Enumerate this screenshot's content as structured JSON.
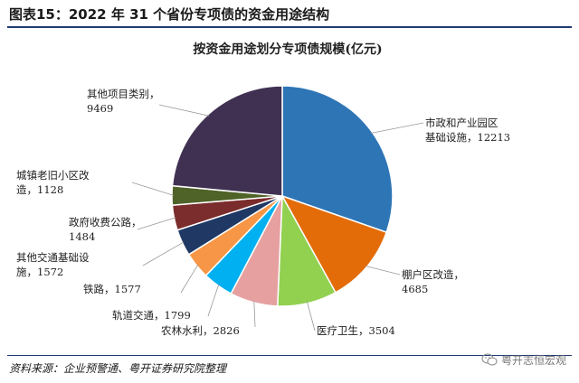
{
  "header": {
    "title": "图表15：2022 年 31 个省份专项债的资金用途结构"
  },
  "source": {
    "text": "资料来源：企业预警通、粤开证券研究院整理"
  },
  "watermark": {
    "text": "粤开志恒宏观",
    "icon": "wechat-icon"
  },
  "chart_data": {
    "type": "pie",
    "title": "按资金用途划分专项债规模(亿元)",
    "legend": "none",
    "slices": [
      {
        "label": "市政和产业园区基础设施",
        "lines": [
          "市政和产业园区",
          "基础设施，12213"
        ],
        "value": 12213,
        "color": "#2e75b6"
      },
      {
        "label": "棚户区改造",
        "lines": [
          "棚户区改造，",
          "4685"
        ],
        "value": 4685,
        "color": "#e36c09"
      },
      {
        "label": "医疗卫生",
        "lines": [
          "医疗卫生，3504"
        ],
        "value": 3504,
        "color": "#92d050"
      },
      {
        "label": "农林水利",
        "lines": [
          "农林水利，2826"
        ],
        "value": 2826,
        "color": "#e6a0a0"
      },
      {
        "label": "轨道交通",
        "lines": [
          "轨道交通，1799"
        ],
        "value": 1799,
        "color": "#00b0f0"
      },
      {
        "label": "铁路",
        "lines": [
          "铁路，1577"
        ],
        "value": 1577,
        "color": "#f79646"
      },
      {
        "label": "其他交通基础设施",
        "lines": [
          "其他交通基础设",
          "施，1572"
        ],
        "value": 1572,
        "color": "#1f3864"
      },
      {
        "label": "政府收费公路",
        "lines": [
          "政府收费公路，",
          "1484"
        ],
        "value": 1484,
        "color": "#7b2c2c"
      },
      {
        "label": "城镇老旧小区改造",
        "lines": [
          "城镇老旧小区改",
          "造，1128"
        ],
        "value": 1128,
        "color": "#4f6228"
      },
      {
        "label": "其他项目类别",
        "lines": [
          "其他项目类别，",
          "9469"
        ],
        "value": 9469,
        "color": "#403152"
      }
    ]
  }
}
